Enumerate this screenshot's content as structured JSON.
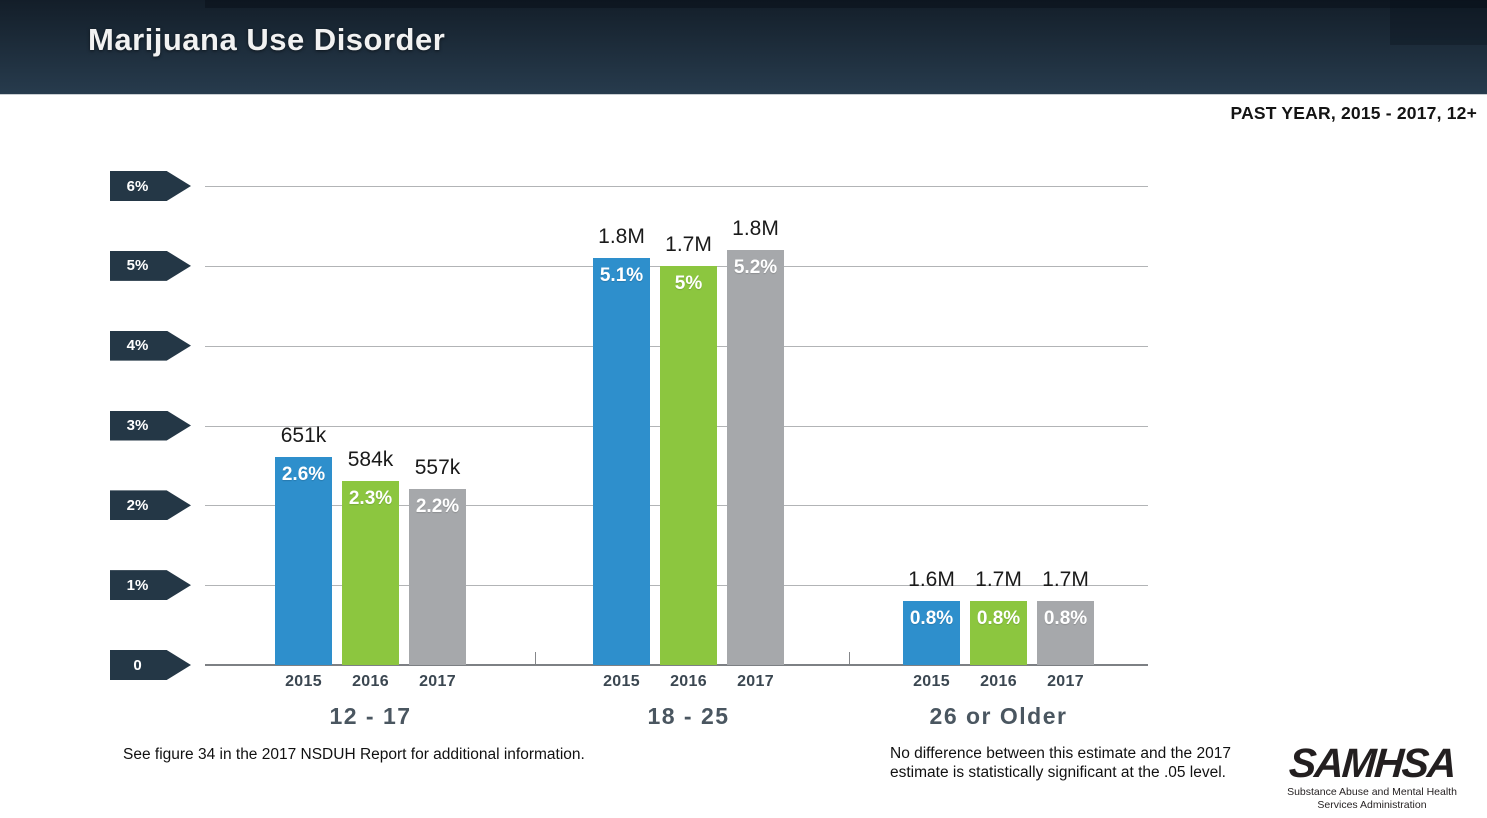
{
  "header": {
    "title": "Marijuana Use Disorder"
  },
  "period_label": "PAST YEAR, 2015 - 2017, 12+",
  "colors": {
    "bar_2015_blue": "#2E8FCC",
    "bar_2016_green": "#8CC63F",
    "bar_2017_gray": "#A6A8AB",
    "axis_tag_navy": "#243746",
    "header_navy": "#1C2B39"
  },
  "chart_data": {
    "type": "bar",
    "title": "Marijuana Use Disorder",
    "subtitle": "PAST YEAR, 2015 - 2017, 12+",
    "ylim": [
      0,
      6
    ],
    "yticks": [
      "6%",
      "5%",
      "4%",
      "3%",
      "2%",
      "1%",
      "0"
    ],
    "grid": true,
    "legend_position": "none",
    "series_colors": {
      "2015": "#2E8FCC",
      "2016": "#8CC63F",
      "2017": "#A6A8AB"
    },
    "years": [
      "2015",
      "2016",
      "2017"
    ],
    "groups": [
      {
        "label": "12 - 17",
        "bars": [
          {
            "year": "2015",
            "value": 2.6,
            "value_label": "2.6%",
            "count_label": "651k"
          },
          {
            "year": "2016",
            "value": 2.3,
            "value_label": "2.3%",
            "count_label": "584k"
          },
          {
            "year": "2017",
            "value": 2.2,
            "value_label": "2.2%",
            "count_label": "557k"
          }
        ]
      },
      {
        "label": "18 - 25",
        "bars": [
          {
            "year": "2015",
            "value": 5.1,
            "value_label": "5.1%",
            "count_label": "1.8M"
          },
          {
            "year": "2016",
            "value": 5.0,
            "value_label": "5%",
            "count_label": "1.7M"
          },
          {
            "year": "2017",
            "value": 5.2,
            "value_label": "5.2%",
            "count_label": "1.8M"
          }
        ]
      },
      {
        "label": "26 or Older",
        "bars": [
          {
            "year": "2015",
            "value": 0.8,
            "value_label": "0.8%",
            "count_label": "1.6M"
          },
          {
            "year": "2016",
            "value": 0.8,
            "value_label": "0.8%",
            "count_label": "1.7M"
          },
          {
            "year": "2017",
            "value": 0.8,
            "value_label": "0.8%",
            "count_label": "1.7M"
          }
        ]
      }
    ]
  },
  "footnotes": {
    "left": "See figure 34 in the 2017 NSDUH Report for additional information.",
    "right": "No difference between this estimate and the 2017 estimate is statistically significant at the .05 level."
  },
  "logo": {
    "name": "SAMHSA",
    "tagline_line1": "Substance Abuse and Mental Health",
    "tagline_line2": "Services Administration"
  }
}
